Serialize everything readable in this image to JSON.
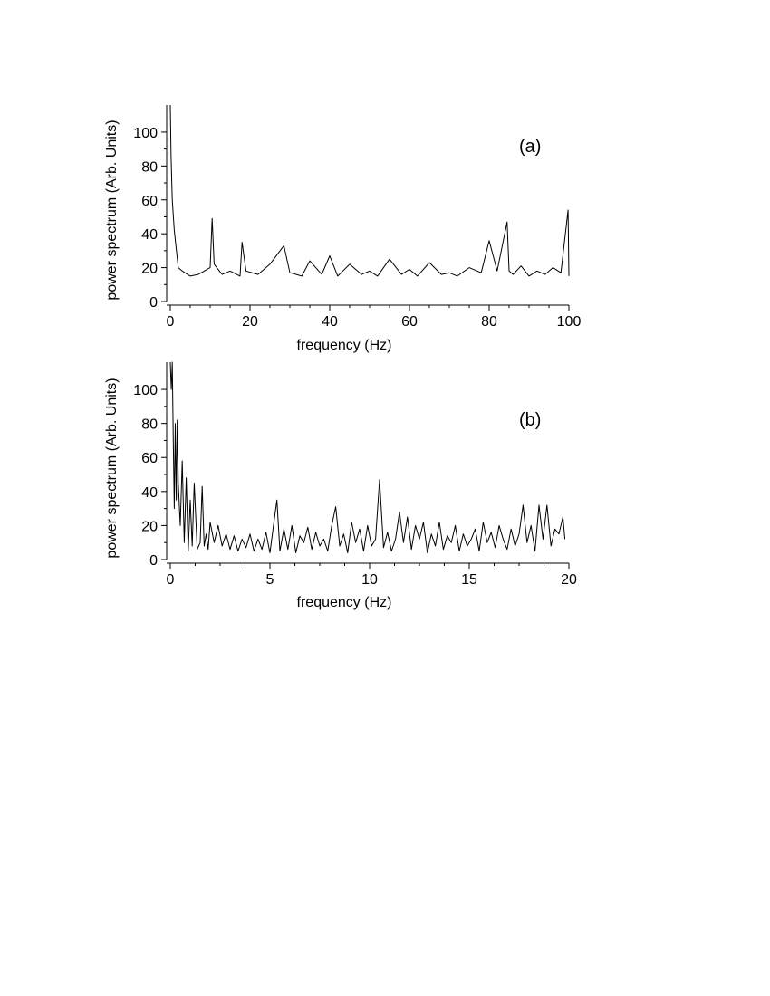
{
  "chart_data": [
    {
      "type": "line",
      "panel_label": "(a)",
      "xlabel": "frequency (Hz)",
      "ylabel": "power spectrum (Arb. Units)",
      "xlim": [
        0,
        100
      ],
      "ylim": [
        0,
        116
      ],
      "xticks": [
        0,
        20,
        40,
        60,
        80,
        100
      ],
      "yticks": [
        0,
        20,
        40,
        60,
        80,
        100
      ],
      "grid": false,
      "legend": "none",
      "line_color": "#000000",
      "series": [
        {
          "x": [
            0,
            0.2,
            0.5,
            1,
            2,
            3,
            5,
            7,
            10,
            10.5,
            11,
            13,
            15,
            17.5,
            18,
            19,
            22,
            25,
            28.5,
            30,
            33,
            35,
            38,
            40,
            42,
            45,
            48,
            50,
            52,
            55,
            58,
            60,
            62,
            65,
            68,
            70,
            72,
            75,
            78,
            80,
            82,
            84.5,
            85,
            86,
            88,
            90,
            92,
            94,
            96,
            98,
            99.8,
            100
          ],
          "y": [
            116,
            85,
            60,
            42,
            20,
            18,
            15,
            16,
            20,
            49,
            22,
            16,
            18,
            15,
            35,
            18,
            16,
            22,
            33,
            17,
            15,
            24,
            16,
            27,
            15,
            22,
            16,
            18,
            15,
            25,
            16,
            19,
            15,
            23,
            16,
            17,
            15,
            20,
            17,
            36,
            18,
            47,
            18,
            16,
            21,
            15,
            18,
            16,
            20,
            17,
            54,
            15
          ]
        }
      ]
    },
    {
      "type": "line",
      "panel_label": "(b)",
      "xlabel": "frequency (Hz)",
      "ylabel": "power spectrum (Arb. Units)",
      "xlim": [
        0,
        20
      ],
      "ylim": [
        0,
        116
      ],
      "xticks": [
        0,
        5,
        10,
        15,
        20
      ],
      "yticks": [
        0,
        20,
        40,
        60,
        80,
        100
      ],
      "grid": false,
      "legend": "none",
      "line_color": "#000000",
      "series": [
        {
          "x": [
            0,
            0.05,
            0.1,
            0.15,
            0.2,
            0.25,
            0.3,
            0.35,
            0.4,
            0.5,
            0.6,
            0.7,
            0.8,
            0.9,
            1.0,
            1.1,
            1.2,
            1.35,
            1.5,
            1.6,
            1.7,
            1.8,
            1.9,
            2.0,
            2.2,
            2.4,
            2.6,
            2.8,
            3.0,
            3.2,
            3.4,
            3.6,
            3.8,
            4.0,
            4.2,
            4.4,
            4.6,
            4.8,
            5.0,
            5.2,
            5.35,
            5.5,
            5.7,
            5.9,
            6.1,
            6.3,
            6.5,
            6.7,
            6.9,
            7.1,
            7.3,
            7.5,
            7.7,
            7.9,
            8.1,
            8.3,
            8.5,
            8.7,
            8.9,
            9.1,
            9.3,
            9.5,
            9.7,
            9.9,
            10.1,
            10.3,
            10.5,
            10.7,
            10.9,
            11.1,
            11.3,
            11.5,
            11.7,
            11.9,
            12.1,
            12.3,
            12.5,
            12.7,
            12.9,
            13.1,
            13.3,
            13.5,
            13.7,
            13.9,
            14.1,
            14.3,
            14.5,
            14.7,
            14.9,
            15.1,
            15.3,
            15.5,
            15.7,
            15.9,
            16.1,
            16.3,
            16.5,
            16.7,
            16.9,
            17.1,
            17.3,
            17.5,
            17.7,
            17.9,
            18.1,
            18.3,
            18.5,
            18.7,
            18.9,
            19.1,
            19.3,
            19.5,
            19.7,
            19.8
          ],
          "y": [
            116,
            100,
            116,
            70,
            30,
            80,
            35,
            82,
            45,
            20,
            58,
            10,
            48,
            5,
            35,
            8,
            45,
            6,
            10,
            43,
            8,
            15,
            6,
            22,
            10,
            20,
            8,
            15,
            6,
            14,
            5,
            12,
            7,
            15,
            5,
            12,
            6,
            16,
            4,
            22,
            35,
            5,
            18,
            6,
            20,
            4,
            14,
            10,
            19,
            6,
            16,
            8,
            12,
            5,
            20,
            31,
            8,
            15,
            4,
            22,
            10,
            18,
            5,
            20,
            8,
            12,
            47,
            7,
            16,
            5,
            12,
            28,
            10,
            25,
            6,
            20,
            12,
            22,
            4,
            15,
            8,
            22,
            6,
            14,
            10,
            20,
            5,
            15,
            8,
            12,
            18,
            5,
            22,
            10,
            16,
            7,
            20,
            12,
            6,
            18,
            8,
            15,
            32,
            10,
            20,
            5,
            32,
            12,
            32,
            8,
            18,
            15,
            25,
            12
          ]
        }
      ]
    }
  ]
}
